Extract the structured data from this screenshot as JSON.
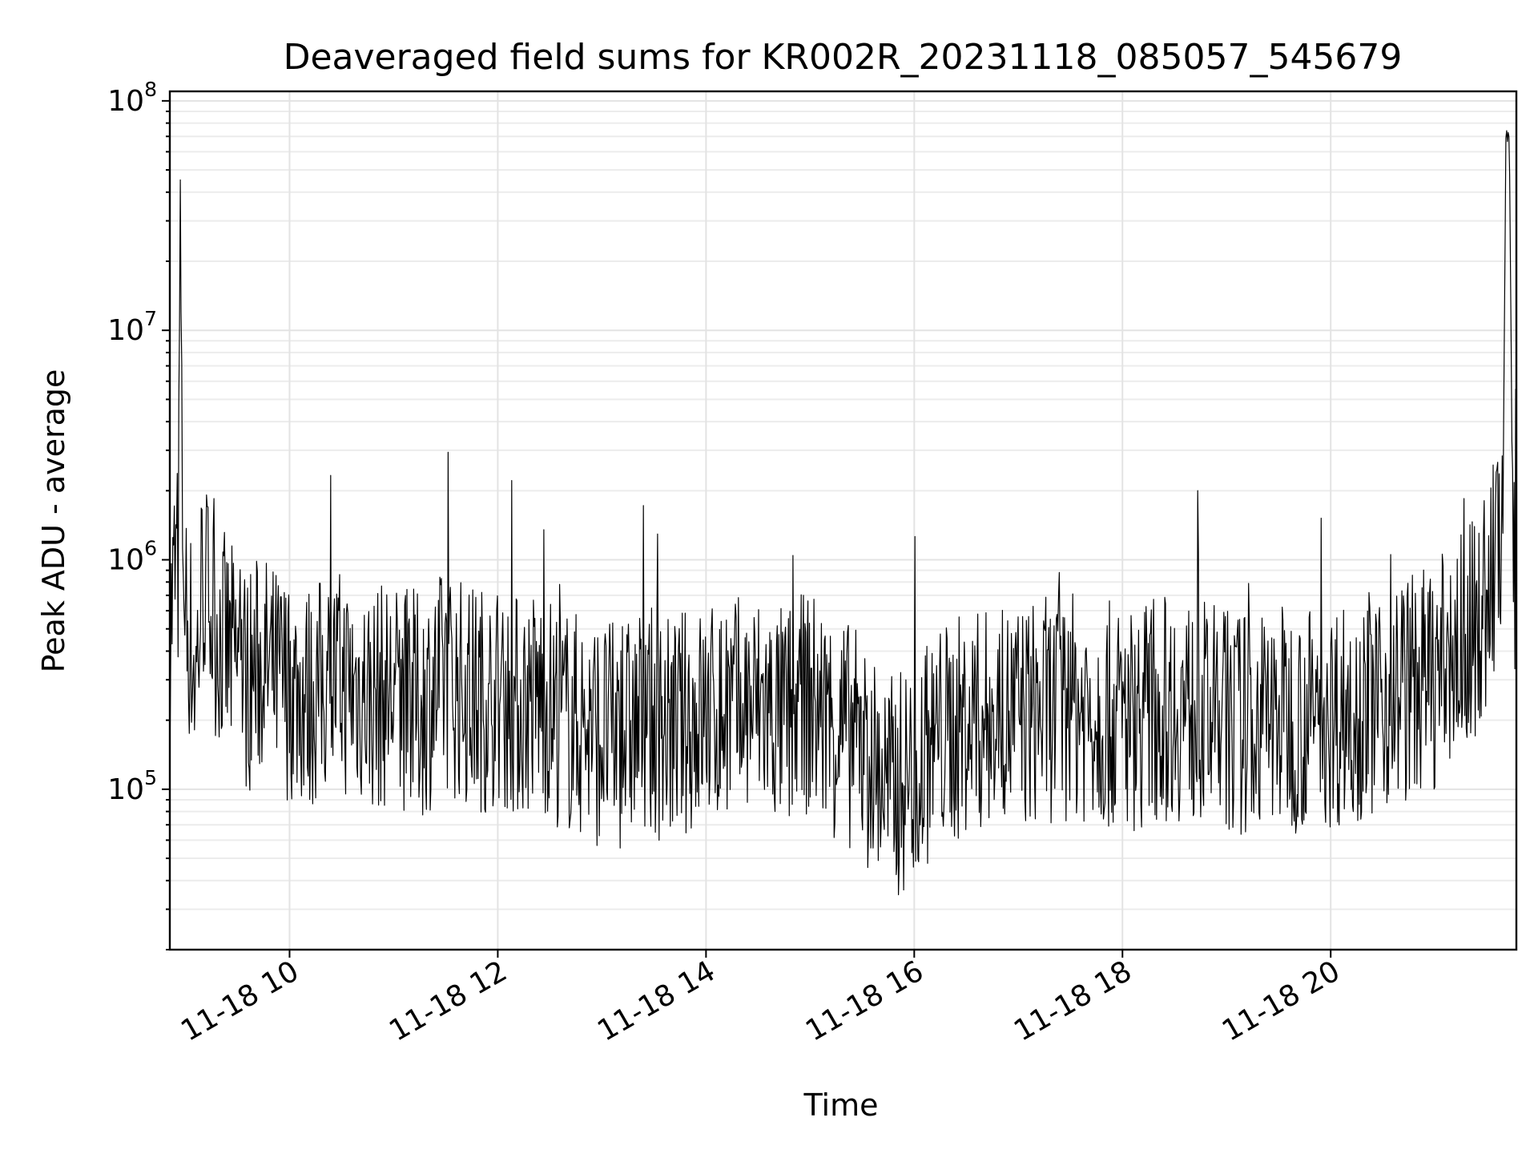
{
  "chart_data": {
    "type": "line",
    "title": "Deaveraged field sums for KR002R_20231118_085057_545679",
    "xlabel": "Time",
    "ylabel": "Peak ADU - average",
    "yscale": "log",
    "xlim": [
      "2023-11-18 08:51",
      "2023-11-18 21:47"
    ],
    "ylim": [
      20000,
      110000000
    ],
    "grid": true,
    "x_ticks": [
      {
        "value": "2023-11-18 10:00",
        "label": "11-18 10"
      },
      {
        "value": "2023-11-18 12:00",
        "label": "11-18 12"
      },
      {
        "value": "2023-11-18 14:00",
        "label": "11-18 14"
      },
      {
        "value": "2023-11-18 16:00",
        "label": "11-18 16"
      },
      {
        "value": "2023-11-18 18:00",
        "label": "11-18 18"
      },
      {
        "value": "2023-11-18 20:00",
        "label": "11-18 20"
      }
    ],
    "y_ticks": [
      {
        "value": 100000,
        "base": "10",
        "exp": "5"
      },
      {
        "value": 1000000,
        "base": "10",
        "exp": "6"
      },
      {
        "value": 10000000,
        "base": "10",
        "exp": "7"
      },
      {
        "value": 100000000,
        "base": "10",
        "exp": "8"
      }
    ],
    "series": [
      {
        "color": "#000000",
        "x": [
          "2023-11-18 08:51",
          "2023-11-18 08:52",
          "2023-11-18 08:54",
          "2023-11-18 08:56",
          "2023-11-18 08:57",
          "2023-11-18 08:58",
          "2023-11-18 09:00",
          "2023-11-18 09:02",
          "2023-11-18 09:04",
          "2023-11-18 09:06",
          "2023-11-18 09:10",
          "2023-11-18 09:14",
          "2023-11-18 09:18",
          "2023-11-18 09:24",
          "2023-11-18 09:30",
          "2023-11-18 09:36",
          "2023-11-18 09:44",
          "2023-11-18 09:52",
          "2023-11-18 10:00",
          "2023-11-18 10:12",
          "2023-11-18 10:24",
          "2023-11-18 10:36",
          "2023-11-18 10:48",
          "2023-11-18 11:00",
          "2023-11-18 11:15",
          "2023-11-18 11:30",
          "2023-11-18 11:45",
          "2023-11-18 12:00",
          "2023-11-18 12:12",
          "2023-11-18 12:24",
          "2023-11-18 12:40",
          "2023-11-18 12:55",
          "2023-11-18 13:10",
          "2023-11-18 13:25",
          "2023-11-18 13:40",
          "2023-11-18 13:50",
          "2023-11-18 14:00",
          "2023-11-18 14:15",
          "2023-11-18 14:30",
          "2023-11-18 14:45",
          "2023-11-18 15:00",
          "2023-11-18 15:10",
          "2023-11-18 15:20",
          "2023-11-18 15:30",
          "2023-11-18 15:38",
          "2023-11-18 15:46",
          "2023-11-18 15:54",
          "2023-11-18 16:00",
          "2023-11-18 16:15",
          "2023-11-18 16:30",
          "2023-11-18 16:45",
          "2023-11-18 17:00",
          "2023-11-18 17:15",
          "2023-11-18 17:30",
          "2023-11-18 17:45",
          "2023-11-18 18:00",
          "2023-11-18 18:15",
          "2023-11-18 18:30",
          "2023-11-18 18:45",
          "2023-11-18 19:00",
          "2023-11-18 19:15",
          "2023-11-18 19:30",
          "2023-11-18 19:45",
          "2023-11-18 20:00",
          "2023-11-18 20:15",
          "2023-11-18 20:30",
          "2023-11-18 20:45",
          "2023-11-18 21:00",
          "2023-11-18 21:10",
          "2023-11-18 21:20",
          "2023-11-18 21:28",
          "2023-11-18 21:34",
          "2023-11-18 21:37",
          "2023-11-18 21:39",
          "2023-11-18 21:41",
          "2023-11-18 21:43",
          "2023-11-18 21:45",
          "2023-11-18 21:47"
        ],
        "values": [
          400000,
          600000,
          900000,
          900000,
          50000000,
          2000000,
          600000,
          500000,
          400000,
          300000,
          900000,
          600000,
          500000,
          400000,
          350000,
          300000,
          350000,
          300000,
          280000,
          250000,
          300000,
          280000,
          250000,
          260000,
          230000,
          300000,
          250000,
          250000,
          230000,
          250000,
          200000,
          180000,
          170000,
          200000,
          180000,
          200000,
          210000,
          220000,
          230000,
          200000,
          240000,
          200000,
          180000,
          150000,
          120000,
          100000,
          110000,
          120000,
          170000,
          190000,
          200000,
          210000,
          220000,
          230000,
          220000,
          200000,
          220000,
          230000,
          210000,
          200000,
          190000,
          210000,
          200000,
          210000,
          230000,
          250000,
          280000,
          310000,
          380000,
          460000,
          600000,
          900000,
          1200000,
          1000000,
          70000000,
          65000000,
          900000,
          800000
        ]
      }
    ]
  }
}
